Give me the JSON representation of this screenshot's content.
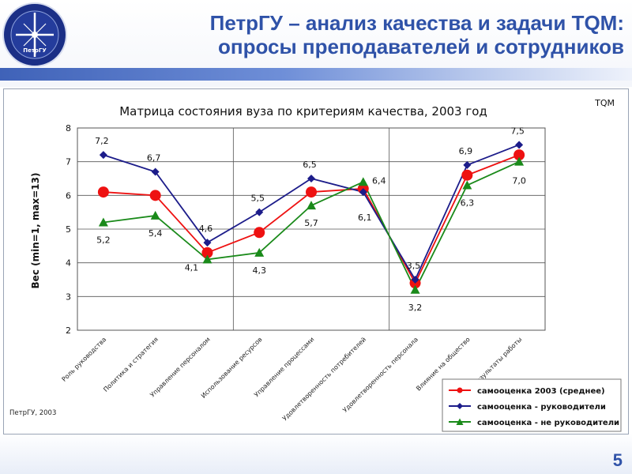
{
  "header": {
    "title_line1": "ПетрГУ – анализ качества и задачи TQM:",
    "title_line2": "опросы преподавателей и сотрудников",
    "logo_text": "Петрозаводский государственный университет ПетрГУ"
  },
  "colors": {
    "title": "#2f52a8",
    "red": "#ee1111",
    "blue": "#1c1c8a",
    "green": "#1a8a1a"
  },
  "page_number": "5",
  "chart_data": {
    "type": "line",
    "title": "Матрица состояния вуза по критериям качества, 2003 год",
    "corner_tag": "TQM",
    "footer_note": "ПетрГУ, 2003",
    "ylabel": "Вес (min=1, max=13)",
    "ylim": [
      2,
      8
    ],
    "yticks": [
      "2",
      "3",
      "4",
      "5",
      "6",
      "7",
      "8"
    ],
    "grid": true,
    "legend_position": "bottom-right",
    "categories": [
      "Роль руководства",
      "Политика и стратегия",
      "Управление персоналом",
      "Использование ресурсов",
      "Управление процессами",
      "Удовлетворенность потребителей",
      "Удовлетворенность персонала",
      "Влияние на общество",
      "Результаты работы"
    ],
    "series": [
      {
        "name": "самооценка 2003 (среднее)",
        "color": "#ee1111",
        "marker": "circle",
        "values": [
          6.1,
          6.0,
          4.3,
          4.9,
          6.1,
          6.2,
          3.4,
          6.6,
          7.2
        ]
      },
      {
        "name": "самооценка - руководители",
        "color": "#1c1c8a",
        "marker": "diamond",
        "values": [
          7.2,
          6.7,
          4.6,
          5.5,
          6.5,
          6.1,
          3.5,
          6.9,
          7.5
        ],
        "labels": [
          "7,2",
          "6,7",
          "4,6",
          "5,5",
          "6,5",
          "6,1",
          "3,5",
          "6,9",
          "7,5"
        ]
      },
      {
        "name": "самооценка - не руководители",
        "color": "#1a8a1a",
        "marker": "triangle",
        "values": [
          5.2,
          5.4,
          4.1,
          4.3,
          5.7,
          6.4,
          3.2,
          6.3,
          7.0
        ],
        "labels": [
          "5,2",
          "5,4",
          "4,1",
          "4,3",
          "5,7",
          "6,4",
          "3,2",
          "6,3",
          "7,0"
        ]
      }
    ]
  }
}
